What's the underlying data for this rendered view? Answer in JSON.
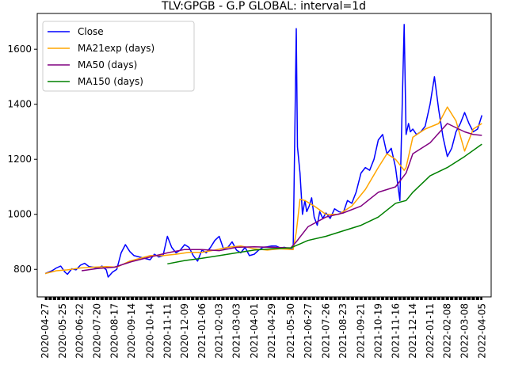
{
  "chart_data": {
    "type": "line",
    "title": "TLV:GPGB - G.P GLOBAL: interval=1d",
    "xlabel": "",
    "ylabel": "",
    "x_tick_labels": [
      "2020-04-27",
      "2020-05-25",
      "2020-06-22",
      "2020-07-20",
      "2020-08-17",
      "2020-09-14",
      "2020-10-14",
      "2020-11-11",
      "2020-12-09",
      "2021-01-06",
      "2021-02-03",
      "2021-03-03",
      "2021-04-01",
      "2021-04-29",
      "2021-05-30",
      "2021-06-27",
      "2021-07-26",
      "2021-08-23",
      "2021-09-21",
      "2021-10-19",
      "2021-11-16",
      "2021-12-14",
      "2022-01-11",
      "2022-02-08",
      "2022-03-08",
      "2022-04-05"
    ],
    "y_ticks": [
      800,
      1000,
      1200,
      1400,
      1600
    ],
    "ylim": [
      700,
      1730
    ],
    "xlim": [
      "2020-04-14",
      "2022-04-20"
    ],
    "grid": false,
    "legend_position": "top-left",
    "series": [
      {
        "name": "Close",
        "color": "#0000ff",
        "x": [
          "2020-04-27",
          "2020-05-08",
          "2020-05-15",
          "2020-05-22",
          "2020-05-29",
          "2020-06-02",
          "2020-06-09",
          "2020-06-16",
          "2020-06-23",
          "2020-06-30",
          "2020-07-07",
          "2020-07-14",
          "2020-07-21",
          "2020-07-28",
          "2020-08-04",
          "2020-08-07",
          "2020-08-14",
          "2020-08-21",
          "2020-08-28",
          "2020-09-04",
          "2020-09-11",
          "2020-09-18",
          "2020-10-14",
          "2020-10-21",
          "2020-10-28",
          "2020-11-04",
          "2020-11-11",
          "2020-11-18",
          "2020-11-25",
          "2020-12-02",
          "2020-12-09",
          "2020-12-16",
          "2020-12-23",
          "2020-12-30",
          "2021-01-06",
          "2021-01-13",
          "2021-01-20",
          "2021-01-27",
          "2021-02-03",
          "2021-02-10",
          "2021-02-17",
          "2021-02-24",
          "2021-03-03",
          "2021-03-10",
          "2021-03-17",
          "2021-03-24",
          "2021-04-01",
          "2021-04-08",
          "2021-04-15",
          "2021-04-22",
          "2021-04-29",
          "2021-05-06",
          "2021-05-13",
          "2021-05-20",
          "2021-05-27",
          "2021-06-03",
          "2021-06-08",
          "2021-06-10",
          "2021-06-14",
          "2021-06-18",
          "2021-06-22",
          "2021-06-25",
          "2021-06-29",
          "2021-07-03",
          "2021-07-07",
          "2021-07-12",
          "2021-07-16",
          "2021-07-21",
          "2021-07-26",
          "2021-08-02",
          "2021-08-09",
          "2021-08-16",
          "2021-08-23",
          "2021-08-30",
          "2021-09-06",
          "2021-09-13",
          "2021-09-21",
          "2021-09-28",
          "2021-10-05",
          "2021-10-12",
          "2021-10-19",
          "2021-10-26",
          "2021-11-02",
          "2021-11-09",
          "2021-11-16",
          "2021-11-23",
          "2021-11-30",
          "2021-12-03",
          "2021-12-07",
          "2021-12-10",
          "2021-12-14",
          "2021-12-20",
          "2021-12-27",
          "2022-01-03",
          "2022-01-11",
          "2022-01-18",
          "2022-01-25",
          "2022-02-01",
          "2022-02-08",
          "2022-02-15",
          "2022-02-22",
          "2022-03-01",
          "2022-03-08",
          "2022-03-15",
          "2022-03-22",
          "2022-03-29",
          "2022-04-05"
        ],
        "values": [
          785,
          795,
          805,
          812,
          790,
          782,
          802,
          798,
          815,
          822,
          810,
          808,
          804,
          812,
          798,
          772,
          790,
          800,
          860,
          890,
          865,
          850,
          835,
          855,
          845,
          850,
          920,
          880,
          860,
          870,
          890,
          880,
          850,
          830,
          870,
          860,
          880,
          905,
          920,
          875,
          880,
          900,
          870,
          860,
          880,
          850,
          855,
          870,
          880,
          882,
          885,
          885,
          878,
          880,
          875,
          875,
          1675,
          1245,
          1150,
          1000,
          1050,
          1010,
          1030,
          1060,
          990,
          960,
          1010,
          985,
          1005,
          985,
          1020,
          1010,
          1005,
          1050,
          1040,
          1080,
          1150,
          1170,
          1160,
          1200,
          1270,
          1290,
          1220,
          1240,
          1170,
          1050,
          1690,
          1290,
          1330,
          1300,
          1310,
          1290,
          1300,
          1320,
          1400,
          1500,
          1380,
          1280,
          1210,
          1240,
          1300,
          1330,
          1370,
          1330,
          1300,
          1310,
          1360
        ]
      },
      {
        "name": "MA21exp (days)",
        "color": "#ffa500",
        "x": [
          "2020-04-27",
          "2020-05-15",
          "2020-06-02",
          "2020-06-23",
          "2020-07-14",
          "2020-08-04",
          "2020-08-21",
          "2020-09-11",
          "2020-10-14",
          "2020-11-04",
          "2020-11-25",
          "2020-12-16",
          "2021-01-06",
          "2021-01-27",
          "2021-02-17",
          "2021-03-10",
          "2021-04-01",
          "2021-04-22",
          "2021-05-13",
          "2021-06-03",
          "2021-06-08",
          "2021-06-14",
          "2021-06-22",
          "2021-07-07",
          "2021-07-26",
          "2021-08-16",
          "2021-09-06",
          "2021-09-28",
          "2021-10-19",
          "2021-11-02",
          "2021-11-16",
          "2021-11-30",
          "2021-12-03",
          "2021-12-14",
          "2022-01-03",
          "2022-01-25",
          "2022-02-08",
          "2022-02-22",
          "2022-03-08",
          "2022-03-22",
          "2022-04-05"
        ],
        "values": [
          785,
          795,
          798,
          805,
          808,
          810,
          808,
          830,
          850,
          850,
          855,
          862,
          862,
          870,
          880,
          885,
          875,
          870,
          875,
          872,
          935,
          1055,
          1050,
          1030,
          1000,
          1000,
          1030,
          1090,
          1170,
          1220,
          1200,
          1160,
          1170,
          1280,
          1310,
          1330,
          1390,
          1340,
          1230,
          1310,
          1330
        ]
      },
      {
        "name": "MA50 (days)",
        "color": "#800080",
        "x": [
          "2020-06-25",
          "2020-07-20",
          "2020-08-17",
          "2020-09-14",
          "2020-10-14",
          "2020-11-11",
          "2020-12-09",
          "2021-01-06",
          "2021-02-03",
          "2021-03-03",
          "2021-04-01",
          "2021-04-29",
          "2021-05-30",
          "2021-06-08",
          "2021-06-27",
          "2021-07-26",
          "2021-08-23",
          "2021-09-21",
          "2021-10-19",
          "2021-11-16",
          "2021-12-03",
          "2021-12-14",
          "2022-01-11",
          "2022-02-08",
          "2022-03-08",
          "2022-03-22",
          "2022-04-05"
        ],
        "values": [
          795,
          803,
          808,
          828,
          845,
          860,
          872,
          872,
          868,
          880,
          882,
          880,
          878,
          900,
          955,
          990,
          1005,
          1030,
          1080,
          1100,
          1150,
          1220,
          1260,
          1330,
          1300,
          1290,
          1287
        ]
      },
      {
        "name": "MA150 (days)",
        "color": "#008000",
        "x": [
          "2020-11-11",
          "2020-12-09",
          "2021-01-06",
          "2021-02-03",
          "2021-03-03",
          "2021-04-01",
          "2021-04-29",
          "2021-05-30",
          "2021-06-27",
          "2021-07-26",
          "2021-08-23",
          "2021-09-21",
          "2021-10-19",
          "2021-11-16",
          "2021-12-03",
          "2021-12-14",
          "2022-01-11",
          "2022-02-08",
          "2022-03-08",
          "2022-04-05"
        ],
        "values": [
          820,
          832,
          840,
          850,
          860,
          870,
          875,
          878,
          905,
          920,
          940,
          960,
          990,
          1040,
          1050,
          1080,
          1140,
          1170,
          1210,
          1255
        ]
      }
    ]
  }
}
